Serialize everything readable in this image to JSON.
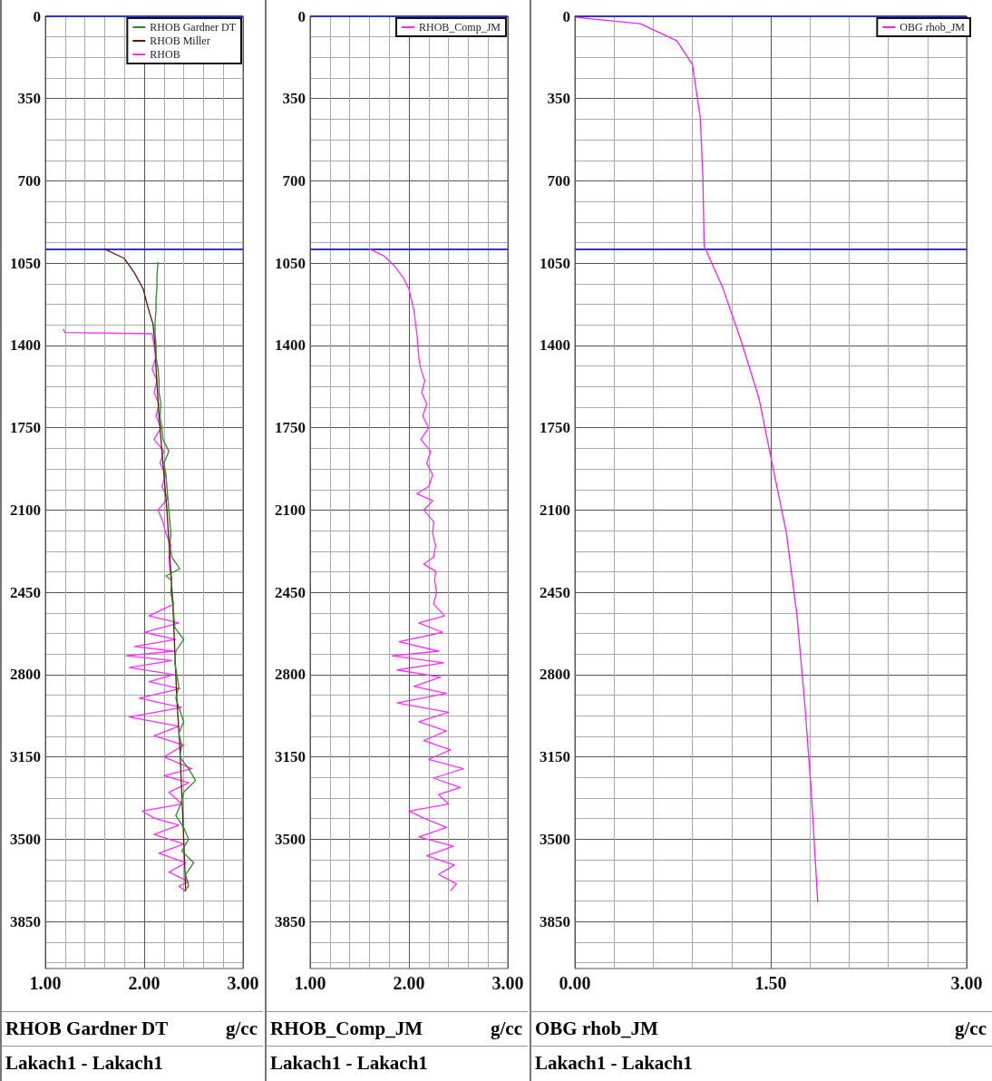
{
  "chart_data": [
    {
      "type": "line",
      "xlabel": "RHOB Gardner DT",
      "annotations": [
        "g/cc",
        "Lakach1 - Lakach1"
      ],
      "xlim": [
        1,
        3
      ],
      "xticks": [
        {
          "value": 1,
          "label": "1.00"
        },
        {
          "value": 2,
          "label": "2.00"
        },
        {
          "value": 3,
          "label": "3.00"
        }
      ],
      "ylim": [
        4050,
        0
      ],
      "yticks": [
        0,
        350,
        700,
        1050,
        1400,
        1750,
        2100,
        2450,
        2800,
        3150,
        3500,
        3850
      ],
      "grid": true,
      "legend": "top right",
      "ref_lines": [
        {
          "axis": "y",
          "value": 0,
          "color": "#3333cc"
        },
        {
          "axis": "y",
          "value": 990,
          "color": "#3333cc"
        }
      ],
      "series": [
        {
          "name": "RHOB Gardner DT",
          "color": "#2a8a2a",
          "x": [
            2.14,
            2.13,
            2.13,
            2.12,
            2.12,
            2.11,
            2.11,
            2.12,
            2.12,
            2.14,
            2.15,
            2.15,
            2.17,
            2.16,
            2.18,
            2.19,
            2.25,
            2.2,
            2.22,
            2.23,
            2.24,
            2.25,
            2.26,
            2.27,
            2.26,
            2.28,
            2.36,
            2.22,
            2.28,
            2.27,
            2.29,
            2.3,
            2.31,
            2.4,
            2.32,
            2.31,
            2.33,
            2.35,
            2.32,
            2.36,
            2.4,
            2.35,
            2.38,
            2.36,
            2.45,
            2.52,
            2.4,
            2.37,
            2.32,
            2.4,
            2.45,
            2.38,
            2.5,
            2.42,
            2.45,
            2.4
          ],
          "values": [
            1045,
            1100,
            1150,
            1200,
            1250,
            1300,
            1350,
            1400,
            1450,
            1500,
            1550,
            1600,
            1650,
            1700,
            1750,
            1800,
            1850,
            1900,
            1950,
            2000,
            2050,
            2100,
            2150,
            2200,
            2250,
            2300,
            2350,
            2380,
            2400,
            2450,
            2500,
            2550,
            2600,
            2650,
            2700,
            2750,
            2800,
            2850,
            2900,
            2950,
            3000,
            3050,
            3100,
            3150,
            3200,
            3250,
            3300,
            3350,
            3400,
            3450,
            3500,
            3550,
            3600,
            3650,
            3700,
            3720
          ]
        },
        {
          "name": "RHOB Miller",
          "color": "#5a1a0a",
          "x": [
            1.6,
            1.8,
            1.9,
            1.99,
            2.04,
            2.09,
            2.11,
            2.12,
            2.15,
            2.19,
            2.23,
            2.26,
            2.29,
            2.31,
            2.33,
            2.36,
            2.38,
            2.4,
            2.42
          ],
          "values": [
            990,
            1030,
            1090,
            1160,
            1240,
            1310,
            1400,
            1500,
            1700,
            1900,
            2100,
            2300,
            2500,
            2700,
            2900,
            3100,
            3300,
            3500,
            3720
          ]
        },
        {
          "name": "RHOB",
          "color": "#ff2cff",
          "x": [
            1.18,
            1.2,
            2.08,
            2.1,
            2.12,
            2.08,
            2.13,
            2.1,
            2.15,
            2.12,
            2.17,
            2.1,
            2.2,
            2.16,
            2.22,
            2.18,
            2.24,
            2.14,
            2.19,
            2.22,
            2.27,
            2.25,
            2.26,
            2.28,
            2.27,
            2.3,
            2.05,
            2.35,
            2.0,
            2.32,
            1.9,
            2.3,
            1.82,
            2.28,
            1.85,
            2.3,
            2.05,
            2.36,
            1.95,
            2.38,
            1.85,
            2.35,
            2.1,
            2.4,
            2.2,
            2.48,
            2.2,
            2.45,
            2.25,
            2.38,
            1.98,
            2.1,
            2.35,
            2.1,
            2.4,
            2.15,
            2.42,
            2.25,
            2.45,
            2.35,
            2.42
          ],
          "values": [
            1330,
            1345,
            1350,
            1400,
            1450,
            1500,
            1550,
            1600,
            1650,
            1700,
            1750,
            1800,
            1850,
            1900,
            1950,
            2000,
            2050,
            2100,
            2150,
            2200,
            2250,
            2300,
            2350,
            2400,
            2450,
            2500,
            2550,
            2580,
            2620,
            2650,
            2680,
            2700,
            2720,
            2740,
            2770,
            2800,
            2830,
            2860,
            2900,
            2940,
            2980,
            3020,
            3060,
            3100,
            3150,
            3200,
            3230,
            3260,
            3300,
            3350,
            3380,
            3410,
            3440,
            3480,
            3520,
            3560,
            3600,
            3640,
            3680,
            3700,
            3720
          ]
        }
      ]
    },
    {
      "type": "line",
      "xlabel": "RHOB_Comp_JM",
      "annotations": [
        "g/cc",
        "Lakach1 - Lakach1"
      ],
      "xlim": [
        1,
        3
      ],
      "xticks": [
        {
          "value": 1,
          "label": "1.00"
        },
        {
          "value": 2,
          "label": "2.00"
        },
        {
          "value": 3,
          "label": "3.00"
        }
      ],
      "ylim": [
        4050,
        0
      ],
      "yticks": [
        0,
        350,
        700,
        1050,
        1400,
        1750,
        2100,
        2450,
        2800,
        3150,
        3500,
        3850
      ],
      "grid": true,
      "legend": "top right",
      "ref_lines": [
        {
          "axis": "y",
          "value": 0,
          "color": "#3333cc"
        },
        {
          "axis": "y",
          "value": 990,
          "color": "#3333cc"
        }
      ],
      "series": [
        {
          "name": "RHOB_Comp_JM",
          "color": "#ff2cff",
          "x": [
            1.6,
            1.75,
            1.85,
            1.94,
            2.0,
            2.05,
            2.08,
            2.1,
            2.11,
            2.12,
            2.16,
            2.13,
            2.18,
            2.14,
            2.2,
            2.12,
            2.22,
            2.18,
            2.24,
            2.2,
            2.08,
            2.24,
            2.15,
            2.25,
            2.24,
            2.27,
            2.25,
            2.15,
            2.27,
            2.26,
            2.28,
            2.25,
            2.36,
            2.1,
            2.34,
            1.9,
            2.3,
            1.83,
            2.35,
            1.88,
            2.32,
            2.05,
            2.38,
            1.88,
            2.4,
            2.1,
            2.38,
            2.15,
            2.42,
            2.2,
            2.55,
            2.25,
            2.52,
            2.3,
            2.4,
            2.0,
            2.15,
            2.38,
            2.1,
            2.45,
            2.18,
            2.46,
            2.3,
            2.48,
            2.42
          ],
          "values": [
            990,
            1020,
            1060,
            1110,
            1160,
            1250,
            1350,
            1450,
            1480,
            1500,
            1550,
            1600,
            1650,
            1700,
            1750,
            1800,
            1850,
            1900,
            1950,
            2000,
            2030,
            2060,
            2100,
            2150,
            2200,
            2250,
            2300,
            2330,
            2360,
            2400,
            2450,
            2500,
            2550,
            2580,
            2620,
            2660,
            2700,
            2720,
            2750,
            2780,
            2810,
            2850,
            2880,
            2920,
            2960,
            3000,
            3040,
            3080,
            3120,
            3160,
            3200,
            3240,
            3280,
            3310,
            3350,
            3380,
            3410,
            3450,
            3490,
            3530,
            3570,
            3610,
            3650,
            3690,
            3720
          ]
        }
      ]
    },
    {
      "type": "line",
      "xlabel": "OBG rhob_JM",
      "annotations": [
        "g/cc",
        "Lakach1 - Lakach1"
      ],
      "xlim": [
        0,
        3
      ],
      "xticks": [
        {
          "value": 0,
          "label": "0.00"
        },
        {
          "value": 1.5,
          "label": "1.50"
        },
        {
          "value": 3,
          "label": "3.00"
        }
      ],
      "ylim": [
        4050,
        0
      ],
      "yticks": [
        0,
        350,
        700,
        1050,
        1400,
        1750,
        2100,
        2450,
        2800,
        3150,
        3500,
        3850
      ],
      "grid": true,
      "legend": "top right",
      "ref_lines": [
        {
          "axis": "y",
          "value": 0,
          "color": "#3333cc"
        },
        {
          "axis": "y",
          "value": 990,
          "color": "#3333cc"
        }
      ],
      "series": [
        {
          "name": "OBG rhob_JM",
          "color": "#ee22ee",
          "x": [
            0.01,
            0.5,
            0.78,
            0.9,
            0.96,
            0.98,
            0.99,
            1.13,
            1.27,
            1.41,
            1.51,
            1.62,
            1.7,
            1.76,
            1.81,
            1.86
          ],
          "values": [
            4,
            31,
            104,
            205,
            429,
            680,
            977,
            1151,
            1375,
            1625,
            1900,
            2197,
            2544,
            2919,
            3293,
            3768
          ]
        }
      ]
    }
  ]
}
